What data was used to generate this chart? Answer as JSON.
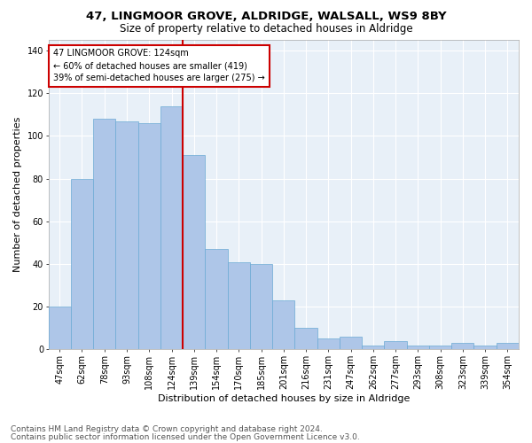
{
  "title1": "47, LINGMOOR GROVE, ALDRIDGE, WALSALL, WS9 8BY",
  "title2": "Size of property relative to detached houses in Aldridge",
  "xlabel": "Distribution of detached houses by size in Aldridge",
  "ylabel": "Number of detached properties",
  "categories": [
    "47sqm",
    "62sqm",
    "78sqm",
    "93sqm",
    "108sqm",
    "124sqm",
    "139sqm",
    "154sqm",
    "170sqm",
    "185sqm",
    "201sqm",
    "216sqm",
    "231sqm",
    "247sqm",
    "262sqm",
    "277sqm",
    "293sqm",
    "308sqm",
    "323sqm",
    "339sqm",
    "354sqm"
  ],
  "hist_values": [
    20,
    80,
    108,
    107,
    106,
    114,
    91,
    47,
    41,
    40,
    23,
    10,
    5,
    6,
    2,
    4,
    2,
    2,
    3,
    2,
    3
  ],
  "bar_color": "#aec6e8",
  "bar_edge_color": "#6baad4",
  "vline_color": "#cc0000",
  "vline_pos": 6,
  "annotation_text": "47 LINGMOOR GROVE: 124sqm\n← 60% of detached houses are smaller (419)\n39% of semi-detached houses are larger (275) →",
  "annotation_box_color": "#ffffff",
  "annotation_box_edge": "#cc0000",
  "ylim": [
    0,
    145
  ],
  "yticks": [
    0,
    20,
    40,
    60,
    80,
    100,
    120,
    140
  ],
  "bg_color": "#e8f0f8",
  "footer1": "Contains HM Land Registry data © Crown copyright and database right 2024.",
  "footer2": "Contains public sector information licensed under the Open Government Licence v3.0.",
  "title_fontsize": 9.5,
  "subtitle_fontsize": 8.5,
  "tick_fontsize": 7,
  "label_fontsize": 8,
  "footer_fontsize": 6.5,
  "annotation_fontsize": 7
}
